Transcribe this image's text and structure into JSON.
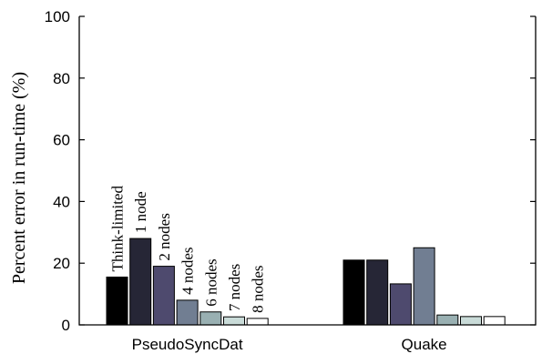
{
  "chart_data": {
    "type": "bar",
    "title": "",
    "xlabel": "",
    "ylabel": "Percent error in run-time (%)",
    "ylim": [
      0,
      100
    ],
    "yticks": [
      0,
      20,
      40,
      60,
      80,
      100
    ],
    "grid": false,
    "categories": [
      "PseudoSyncDat",
      "Quake"
    ],
    "series": [
      {
        "name": "Think-limited",
        "color": "#000000",
        "values": [
          15.5,
          21
        ]
      },
      {
        "name": "1 node",
        "color": "#262636",
        "values": [
          28,
          21
        ]
      },
      {
        "name": "2 nodes",
        "color": "#4e4a6e",
        "values": [
          19,
          13.3
        ]
      },
      {
        "name": "4 nodes",
        "color": "#717e92",
        "values": [
          8,
          25
        ]
      },
      {
        "name": "6 nodes",
        "color": "#99b0b2",
        "values": [
          4.2,
          3.2
        ]
      },
      {
        "name": "7 nodes",
        "color": "#c9dbd8",
        "values": [
          2.6,
          2.7
        ]
      },
      {
        "name": "8 nodes",
        "color": "#ffffff",
        "values": [
          2.1,
          2.7
        ]
      }
    ]
  }
}
